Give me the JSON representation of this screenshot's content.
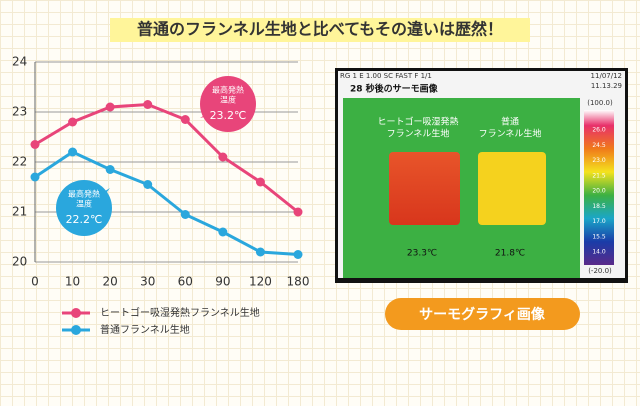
{
  "chart_data": {
    "type": "line",
    "title": "普通のフランネル生地と比べてもその違いは歴然！",
    "categories": [
      "0",
      "10",
      "20",
      "30",
      "60",
      "90",
      "120",
      "180"
    ],
    "series": [
      {
        "name": "ヒートゴー吸湿発熱フランネル生地",
        "color": "#e8457a",
        "values": [
          22.35,
          22.8,
          23.1,
          23.15,
          22.85,
          22.1,
          21.6,
          21.0
        ]
      },
      {
        "name": "普通フランネル生地",
        "color": "#2aa7dd",
        "values": [
          21.7,
          22.2,
          21.85,
          21.55,
          20.95,
          20.6,
          20.2,
          20.15
        ]
      }
    ],
    "ylim": [
      20,
      24
    ],
    "yticks": [
      20,
      21,
      22,
      23,
      24
    ],
    "grid": true,
    "annotations": [
      {
        "lines": [
          "最高発熱",
          "温度"
        ],
        "value": "23.2℃"
      },
      {
        "lines": [
          "最高発熱",
          "温度"
        ],
        "value": "22.2℃"
      }
    ]
  },
  "thermo": {
    "status": "RG  1  E  1.00  SC  FAST  F  1/1",
    "date": "11/07/12",
    "time": "11.13.29",
    "caption": "28 秒後のサーモ画像",
    "left_label": [
      "ヒートゴー吸湿発熱",
      "フランネル生地"
    ],
    "right_label": [
      "普通",
      "フランネル生地"
    ],
    "left_temp": "23.3℃",
    "right_temp": "21.8℃",
    "scale_top": "(100.0)",
    "scale_bottom": "(-20.0)",
    "scale_labels": [
      "26.0",
      "24.5",
      "23.0",
      "21.5",
      "20.0",
      "18.5",
      "17.0",
      "15.5",
      "14.0"
    ],
    "button": "サーモグラフィ画像"
  }
}
